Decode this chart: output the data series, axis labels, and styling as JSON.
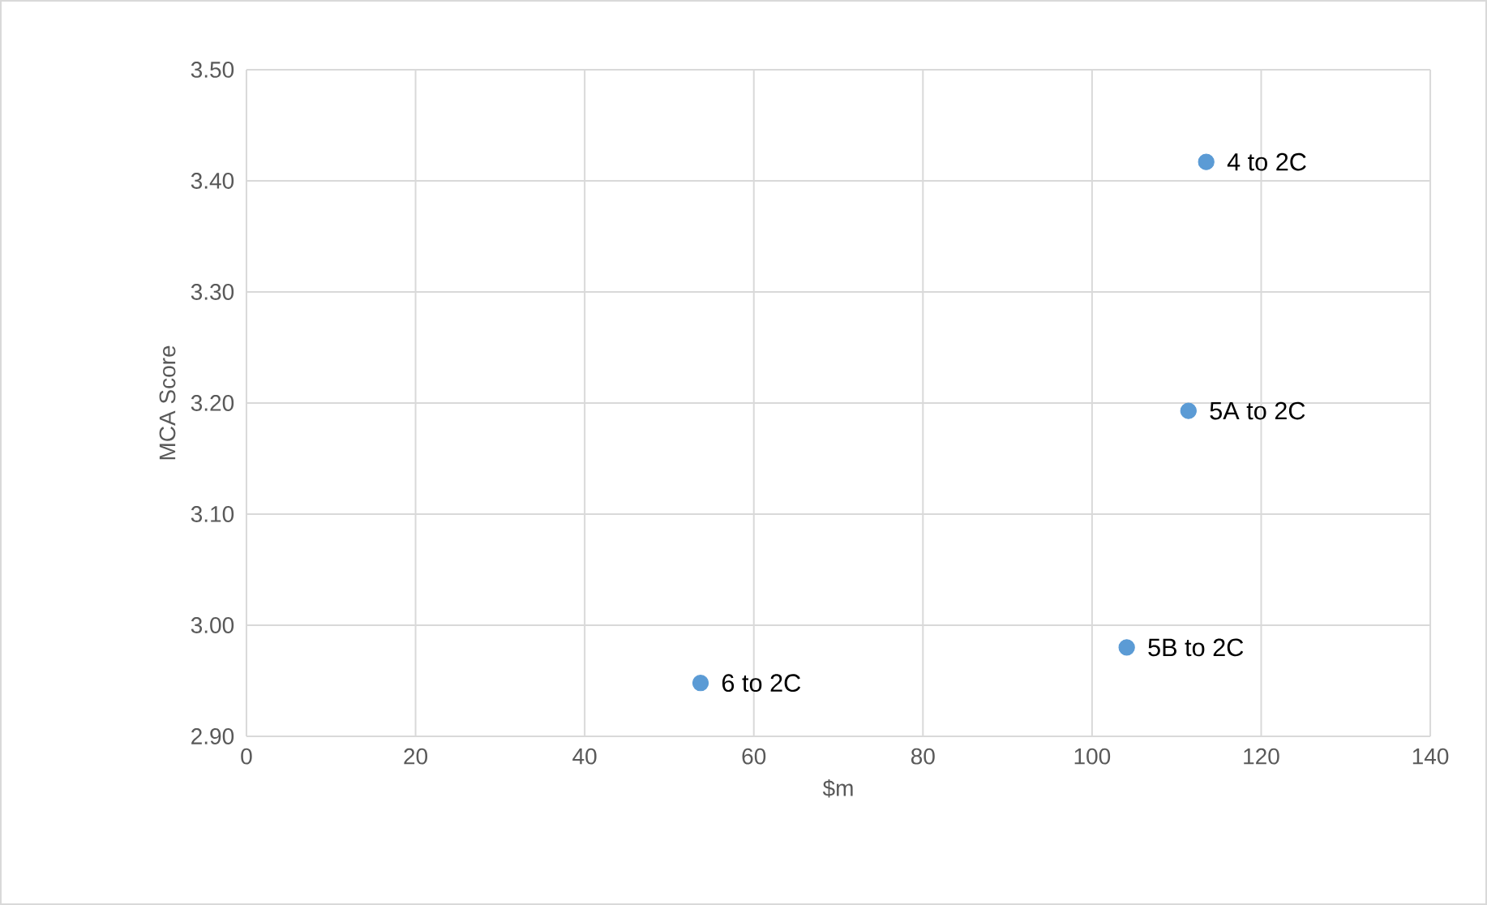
{
  "chart_data": {
    "type": "scatter",
    "xlabel": "$m",
    "ylabel": "MCA Score",
    "x": [
      113.5,
      111.4,
      104.1,
      53.7
    ],
    "values": [
      3.417,
      3.193,
      2.98,
      2.948
    ],
    "color": "#5b9bd5",
    "grid": true,
    "xlim": [
      0,
      140
    ],
    "xticks": [
      0,
      20,
      40,
      60,
      80,
      100,
      120,
      140
    ],
    "ylim": [
      2.9,
      3.5
    ],
    "yticks": [
      {
        "value": 2.9,
        "label": "2.90"
      },
      {
        "value": 3.0,
        "label": "3.00"
      },
      {
        "value": 3.1,
        "label": "3.10"
      },
      {
        "value": 3.2,
        "label": "3.20"
      },
      {
        "value": 3.3,
        "label": "3.30"
      },
      {
        "value": 3.4,
        "label": "3.40"
      },
      {
        "value": 3.5,
        "label": "3.50"
      }
    ],
    "annotations": [
      {
        "text": "4 to 2C",
        "x": 113.5,
        "y": 3.417
      },
      {
        "text": "5A to 2C",
        "x": 111.4,
        "y": 3.193
      },
      {
        "text": "5B to 2C",
        "x": 104.1,
        "y": 2.98
      },
      {
        "text": "6 to 2C",
        "x": 53.7,
        "y": 2.948
      }
    ]
  }
}
